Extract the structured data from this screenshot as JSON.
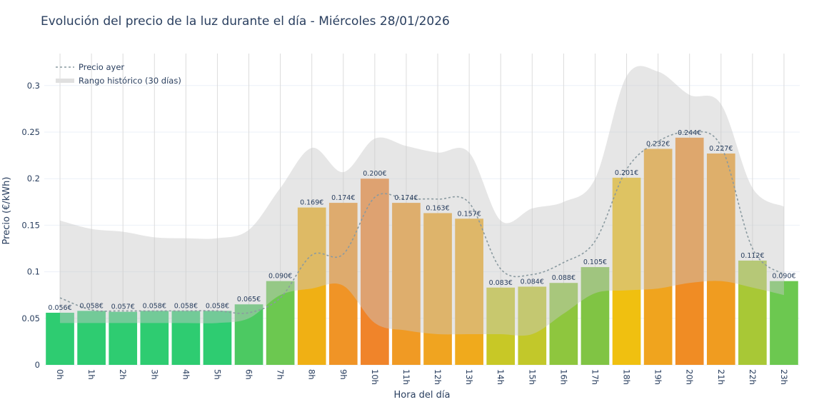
{
  "chart_data": {
    "type": "bar",
    "title": "Evolución del precio de la luz durante el día - Miércoles 28/01/2026",
    "xlabel": "Hora del día",
    "ylabel": "Precio (€/kWh)",
    "ylim": [
      0,
      0.335
    ],
    "yticks": [
      "0",
      "0.05",
      "0.1",
      "0.15",
      "0.2",
      "0.25",
      "0.3"
    ],
    "grid": true,
    "legend_position": "top-left",
    "categories": [
      "0h",
      "1h",
      "2h",
      "3h",
      "4h",
      "5h",
      "6h",
      "7h",
      "8h",
      "9h",
      "10h",
      "11h",
      "12h",
      "13h",
      "14h",
      "15h",
      "16h",
      "17h",
      "18h",
      "19h",
      "20h",
      "21h",
      "22h",
      "23h"
    ],
    "values": [
      0.056,
      0.058,
      0.057,
      0.058,
      0.058,
      0.058,
      0.065,
      0.09,
      0.169,
      0.174,
      0.2,
      0.174,
      0.163,
      0.157,
      0.083,
      0.084,
      0.088,
      0.105,
      0.201,
      0.232,
      0.244,
      0.227,
      0.112,
      0.09
    ],
    "data_labels": [
      "0.056€",
      "0.058€",
      "0.057€",
      "0.058€",
      "0.058€",
      "0.058€",
      "0.065€",
      "0.090€",
      "0.169€",
      "0.174€",
      "0.200€",
      "0.174€",
      "0.163€",
      "0.157€",
      "0.083€",
      "0.084€",
      "0.088€",
      "0.105€",
      "0.201€",
      "0.232€",
      "0.244€",
      "0.227€",
      "0.112€",
      "0.090€"
    ],
    "bar_colors": [
      "#2ecc71",
      "#2ecc71",
      "#2ecc71",
      "#2ecc71",
      "#2ecc71",
      "#2ecc71",
      "#4cc962",
      "#6cc850",
      "#f0b014",
      "#f09426",
      "#f0842a",
      "#f09a24",
      "#f0a420",
      "#f0aa1c",
      "#c8c826",
      "#c2c82a",
      "#8ec63e",
      "#80c444",
      "#f0c010",
      "#f0a41e",
      "#f08c24",
      "#f09c20",
      "#a8c836",
      "#6cc850"
    ],
    "series": [
      {
        "name": "Precio ayer",
        "values": [
          0.072,
          0.059,
          0.058,
          0.058,
          0.058,
          0.058,
          0.056,
          0.072,
          0.118,
          0.119,
          0.18,
          0.178,
          0.178,
          0.174,
          0.103,
          0.097,
          0.11,
          0.133,
          0.21,
          0.24,
          0.25,
          0.235,
          0.125,
          0.097
        ],
        "color": "#8a9aa0"
      },
      {
        "name": "Rango histórico (30 días)",
        "upper": [
          0.155,
          0.146,
          0.143,
          0.137,
          0.136,
          0.136,
          0.145,
          0.19,
          0.233,
          0.207,
          0.243,
          0.235,
          0.228,
          0.228,
          0.155,
          0.168,
          0.175,
          0.2,
          0.31,
          0.315,
          0.29,
          0.28,
          0.19,
          0.17
        ],
        "lower": [
          0.045,
          0.045,
          0.045,
          0.045,
          0.045,
          0.045,
          0.05,
          0.075,
          0.082,
          0.085,
          0.045,
          0.037,
          0.033,
          0.033,
          0.033,
          0.033,
          0.055,
          0.077,
          0.08,
          0.082,
          0.088,
          0.09,
          0.083,
          0.075
        ],
        "color": "#d3d3d3"
      }
    ]
  }
}
